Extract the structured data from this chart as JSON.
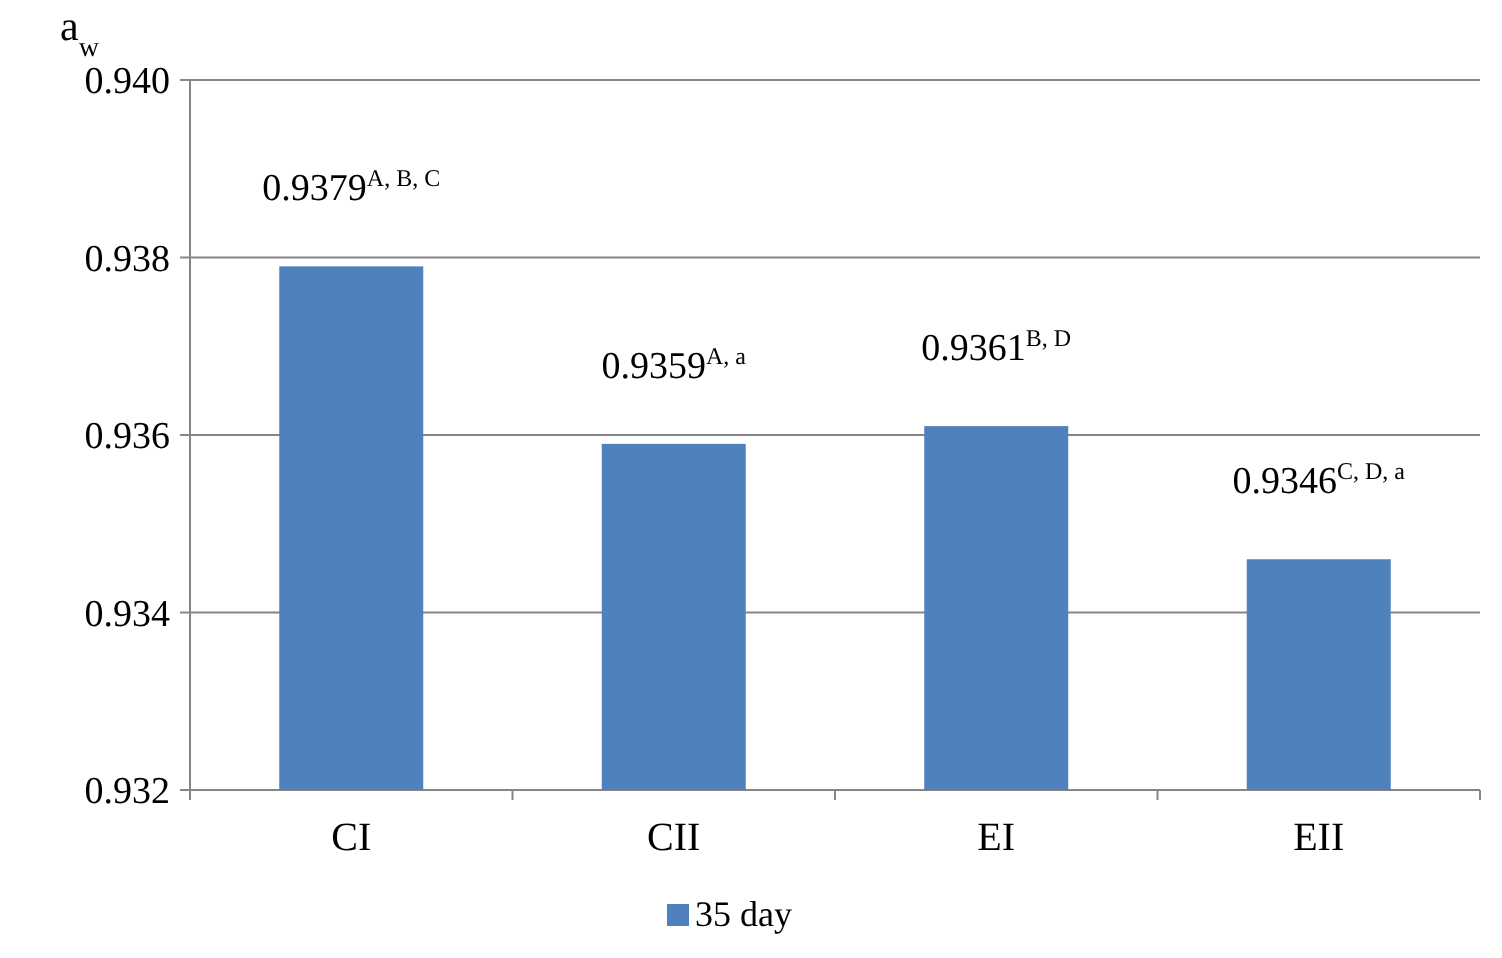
{
  "chart_data": {
    "type": "bar",
    "ylabel": "a$_{w}$",
    "categories": [
      "CI",
      "CII",
      "EI",
      "EII"
    ],
    "series": [
      {
        "name": "35 day",
        "color": "#4f81bd",
        "values": [
          0.9379,
          0.9359,
          0.9361,
          0.9346
        ]
      }
    ],
    "value_labels": [
      "0.9379$^{A, B, C}$",
      "0.9359$^{A, a}$",
      "0.9361$^{B, D}$",
      "0.9346$^{C, D, a}$"
    ],
    "ylim": [
      0.932,
      0.94
    ],
    "yticks": [
      {
        "value": 0.932,
        "label": "0.932"
      },
      {
        "value": 0.934,
        "label": "0.934"
      },
      {
        "value": 0.936,
        "label": "0.936"
      },
      {
        "value": 0.938,
        "label": "0.938"
      },
      {
        "value": 0.94,
        "label": "0.940"
      }
    ],
    "grid": "y",
    "legend": "bottom"
  }
}
